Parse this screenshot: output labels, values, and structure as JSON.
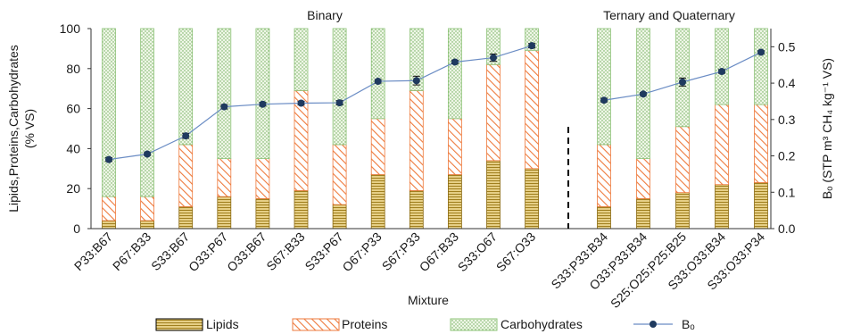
{
  "chart_data": {
    "type": "bar",
    "stacked": true,
    "secondary_series_type": "line",
    "groups": [
      {
        "label": "Binary",
        "categories": [
          "P33:B67",
          "P67:B33",
          "S33:B67",
          "O33:P67",
          "O33:B67",
          "S67:B33",
          "S33:P67",
          "O67:P33",
          "S67:P33",
          "O67:B33",
          "S33:O67",
          "S67:O33"
        ]
      },
      {
        "label": "Ternary and Quaternary",
        "categories": [
          "S33:P33:B34",
          "O33:P33:B34",
          "S25:O25:P25:B25",
          "S33:O33:B34",
          "S33:O33:P34"
        ]
      }
    ],
    "categories": [
      "P33:B67",
      "P67:B33",
      "S33:B67",
      "O33:P67",
      "O33:B67",
      "S67:B33",
      "S33:P67",
      "O67:P33",
      "S67:P33",
      "O67:B33",
      "S33:O67",
      "S67:O33",
      "S33:P33:B34",
      "O33:P33:B34",
      "S25:O25:P25:B25",
      "S33:O33:B34",
      "S33:O33:P34"
    ],
    "series": [
      {
        "name": "Lipids",
        "axis": "left",
        "color": "#c9a640",
        "pattern": "horizontal-lines",
        "values": [
          4,
          4,
          11,
          16,
          15,
          19,
          12,
          27,
          19,
          27,
          34,
          30,
          11,
          15,
          18,
          22,
          23
        ]
      },
      {
        "name": "Proteins",
        "axis": "left",
        "color": "#ee7a3c",
        "pattern": "diagonal-hatch",
        "values": [
          12,
          12,
          31,
          19,
          20,
          50,
          30,
          28,
          50,
          28,
          48,
          59,
          31,
          20,
          33,
          40,
          39
        ]
      },
      {
        "name": "Carbohydrates",
        "axis": "left",
        "color": "#8fc47a",
        "pattern": "dots",
        "values": [
          84,
          84,
          58,
          65,
          65,
          31,
          58,
          45,
          31,
          45,
          18,
          11,
          58,
          65,
          49,
          38,
          38
        ]
      },
      {
        "name": "Bₒ",
        "axis": "right",
        "type": "line",
        "color": "#1f3a5f",
        "line_color": "#6a8cc4",
        "values": [
          0.19,
          0.205,
          0.255,
          0.335,
          0.342,
          0.345,
          0.346,
          0.405,
          0.407,
          0.458,
          0.47,
          0.503,
          0.353,
          0.37,
          0.403,
          0.432,
          0.485
        ],
        "error": [
          0.005,
          0.004,
          0.007,
          0.006,
          0.005,
          0.005,
          0.006,
          0.005,
          0.012,
          0.005,
          0.01,
          0.006,
          0.005,
          0.004,
          0.011,
          0.005,
          0.004
        ]
      }
    ],
    "title": "",
    "xlabel": "Mixture",
    "ylabel_left": "Lipids,Proteins,Carbohydrates (% VS)",
    "ylabel_left_lines": [
      "Lipids,Proteins,Carbohydrates",
      "(% VS)"
    ],
    "ylabel_right": "Bₒ (STP m³ CH₄ kg⁻¹ VS)",
    "ylim_left": [
      0,
      100
    ],
    "yticks_left": [
      "0",
      "20",
      "40",
      "60",
      "80",
      "100"
    ],
    "ylim_right": [
      0,
      0.55
    ],
    "yticks_right": [
      "0.0",
      "0.1",
      "0.2",
      "0.3",
      "0.4",
      "0.5"
    ],
    "divider": "dashed vertical line between groups",
    "grid": false,
    "legend_position": "bottom"
  }
}
